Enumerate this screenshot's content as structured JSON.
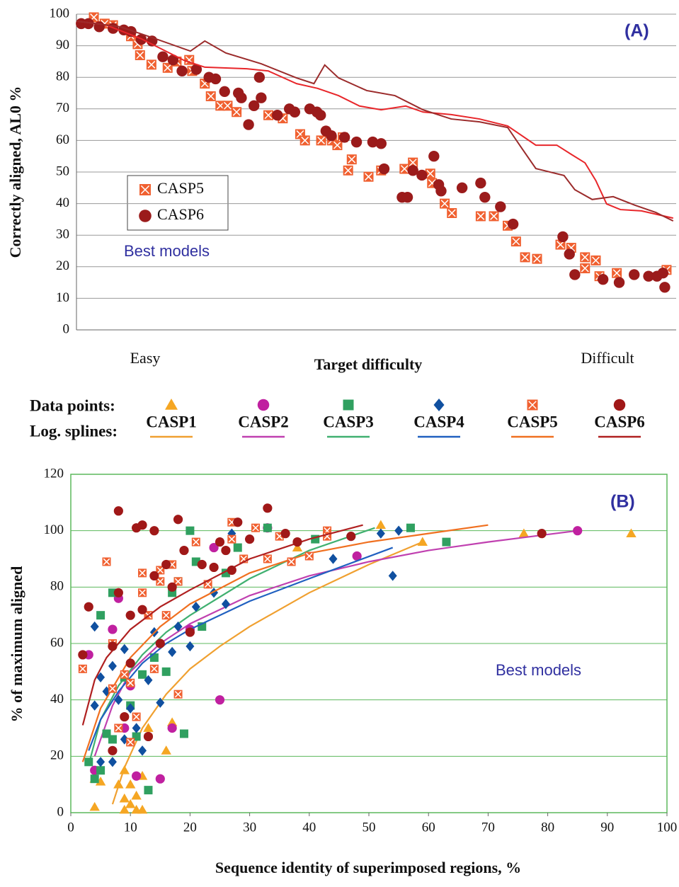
{
  "chart_data": [
    {
      "type": "scatter",
      "label": "(A)",
      "ylabel": "Correctly aligned, AL0 %",
      "xlabel": "Target difficulty",
      "x_end_labels": [
        "Easy",
        "Difficult"
      ],
      "annotation": "Best models",
      "xlim": [
        0,
        100
      ],
      "ylim": [
        0,
        100
      ],
      "yticks": [
        0,
        10,
        20,
        30,
        40,
        50,
        60,
        70,
        80,
        90,
        100
      ],
      "grid": true,
      "series": [
        {
          "name": "CASP5",
          "color": "#f06030",
          "marker": "square-x",
          "x": [
            2.9,
            4.7,
            6.1,
            9.1,
            10.2,
            10.6,
            12.5,
            15.2,
            16.7,
            18.8,
            19.3,
            21.4,
            22.4,
            24,
            25.2,
            26.7,
            32,
            34.4,
            37.3,
            38.1,
            40.8,
            42.6,
            43.5,
            44.4,
            45.3,
            45.9,
            48.7,
            50.8,
            54.7,
            56.1,
            59,
            59.3,
            61.4,
            62.6,
            67.4,
            69.6,
            71.9,
            73.3,
            74.8,
            76.8,
            80.7,
            82.5,
            84.8,
            86.6,
            84.8,
            87.2,
            90.1,
            98.4
          ],
          "values": [
            99,
            97,
            96.5,
            93,
            90.5,
            87,
            84,
            83,
            85,
            85.5,
            82,
            78,
            74,
            71,
            71,
            69,
            68,
            67,
            62,
            60,
            60,
            60,
            58.5,
            61,
            50.5,
            54,
            48.5,
            50.5,
            51,
            53,
            49.5,
            46.5,
            40,
            37,
            36,
            36,
            33,
            28,
            23,
            22.5,
            27,
            26,
            23,
            22,
            19.5,
            17,
            18,
            19
          ]
        },
        {
          "name": "CASP6",
          "color": "#9b1b1b",
          "marker": "circle",
          "x": [
            0.8,
            2,
            3.8,
            6.1,
            7.9,
            9.1,
            10.8,
            12.6,
            14.4,
            16.1,
            17.6,
            20,
            22.1,
            23.2,
            24.7,
            27,
            27.5,
            28.7,
            30.5,
            29.6,
            30.8,
            33.5,
            35.5,
            36.4,
            38.9,
            40.1,
            40.7,
            41.6,
            42.5,
            44.7,
            46.7,
            49.4,
            50.8,
            51.3,
            54.3,
            55.2,
            56.1,
            57.6,
            59.6,
            60.4,
            60.8,
            64.3,
            67.4,
            68.1,
            70.7,
            72.8,
            81.1,
            82.2,
            83.1,
            87.8,
            90.5,
            93,
            95.4,
            96.8,
            97.8,
            98.1
          ],
          "values": [
            97,
            97,
            96,
            95.5,
            95,
            94.5,
            92,
            91.5,
            86.5,
            85.5,
            82,
            82.5,
            80,
            79.5,
            75.5,
            75,
            73.5,
            65,
            80,
            71,
            73.5,
            68,
            70,
            69,
            70,
            69,
            68,
            63,
            61.5,
            61,
            59.5,
            59.5,
            59,
            51,
            42,
            42,
            50.5,
            49,
            55,
            46,
            44,
            45,
            46.5,
            42,
            39,
            33.5,
            29.5,
            24,
            17.5,
            16,
            15,
            17.5,
            17,
            17,
            18,
            13.5
          ]
        },
        {
          "color": "#e8262a",
          "marker": "line",
          "x": [
            0,
            4.9,
            10.8,
            17.9,
            21.4,
            28.4,
            32,
            36.7,
            40.2,
            43.7,
            47.2,
            50.8,
            54.9,
            57.8,
            62.5,
            67.2,
            71.9,
            76.6,
            80.1,
            82.5,
            84.8,
            86.6,
            88.4,
            90.7,
            94.2,
            99.5
          ],
          "values": [
            97.8,
            96.6,
            92.2,
            85.4,
            83.2,
            82.7,
            82,
            78,
            76.5,
            74.2,
            70.9,
            69.7,
            70.9,
            69,
            68.2,
            66.8,
            64.6,
            58.5,
            58.5,
            55.6,
            52.9,
            47.3,
            39.9,
            38.1,
            37.7,
            35.4
          ]
        },
        {
          "color": "#9b2b2b",
          "marker": "line",
          "x": [
            0,
            7.3,
            13.2,
            19,
            21.4,
            24.9,
            30.8,
            36.7,
            39.6,
            41.4,
            43.7,
            48.4,
            53.1,
            57.8,
            62.5,
            67.2,
            71.9,
            74.3,
            76.6,
            81.3,
            83.1,
            86,
            89.5,
            93.1,
            96.6,
            99.5
          ],
          "values": [
            97.8,
            96,
            92.2,
            88.3,
            91.5,
            87.7,
            84.3,
            79.8,
            78,
            83.9,
            79.8,
            75.8,
            74.2,
            69.7,
            66.8,
            65.9,
            64.1,
            57.4,
            51.1,
            48.9,
            44.4,
            41.3,
            42.2,
            39.5,
            37.2,
            34.5
          ]
        }
      ]
    },
    {
      "type": "scatter",
      "label": "(B)",
      "ylabel": "% of maximum aligned",
      "xlabel": "Sequence identity of superimposed regions, %",
      "annotation": "Best models",
      "legend_rows": [
        "Data points:",
        "Log. splines:"
      ],
      "xlim": [
        0,
        100
      ],
      "ylim": [
        0,
        120
      ],
      "xticks": [
        0,
        10,
        20,
        30,
        40,
        50,
        60,
        70,
        80,
        90,
        100
      ],
      "yticks": [
        0,
        20,
        40,
        60,
        80,
        100,
        120
      ],
      "grid": true,
      "series": [
        {
          "name": "CASP1",
          "color": "#f5a623",
          "marker": "triangle",
          "x": [
            4,
            5,
            8,
            9,
            9,
            10,
            10,
            11,
            11,
            12,
            12,
            13,
            16,
            17,
            52,
            59,
            76,
            94,
            38,
            4,
            9
          ],
          "values": [
            2,
            11,
            10,
            5,
            1,
            3,
            10,
            6,
            1,
            1,
            13,
            30,
            22,
            32,
            102,
            96,
            99,
            99,
            94,
            12,
            15
          ],
          "spline": {
            "color": "#f0a030",
            "x": [
              7,
              9,
              12,
              16,
              20,
              25,
              30,
              40,
              50,
              59
            ],
            "values": [
              3,
              16,
              30,
              42,
              51,
              59,
              66,
              78,
              88,
              96
            ]
          }
        },
        {
          "name": "CASP2",
          "color": "#c020a0",
          "marker": "circle",
          "x": [
            3,
            4,
            7,
            9,
            11,
            15,
            17,
            20,
            25,
            24,
            33,
            48,
            85,
            10,
            8
          ],
          "values": [
            56,
            15,
            65,
            30,
            13,
            12,
            30,
            65,
            40,
            94,
            101,
            91,
            100,
            45,
            76
          ],
          "spline": {
            "color": "#c040b0",
            "x": [
              4,
              7,
              10,
              15,
              20,
              30,
              40,
              50,
              60,
              70,
              85
            ],
            "values": [
              20,
              38,
              50,
              60,
              67,
              77,
              84,
              89,
              93,
              96,
              100
            ]
          }
        },
        {
          "name": "CASP3",
          "color": "#30a060",
          "marker": "square",
          "x": [
            3,
            4,
            5,
            5,
            6,
            7,
            7,
            9,
            10,
            11,
            13,
            14,
            16,
            17,
            19,
            20,
            21,
            22,
            26,
            28,
            33,
            41,
            57,
            63,
            18,
            12
          ],
          "values": [
            18,
            12,
            70,
            15,
            28,
            26,
            78,
            48,
            38,
            27,
            8,
            55,
            50,
            78,
            28,
            100,
            89,
            66,
            85,
            94,
            101,
            97,
            101,
            96,
            82,
            49
          ],
          "spline": {
            "color": "#40b070",
            "x": [
              3,
              5,
              8,
              12,
              16,
              20,
              30,
              40,
              51
            ],
            "values": [
              17,
              33,
              45,
              56,
              64,
              70,
              83,
              93,
              101
            ]
          }
        },
        {
          "name": "CASP4",
          "color": "#1050a0",
          "marker": "diamond",
          "x": [
            4,
            5,
            4,
            5,
            6,
            7,
            7,
            8,
            9,
            10,
            11,
            12,
            13,
            14,
            15,
            17,
            18,
            20,
            21,
            24,
            26,
            27,
            44,
            52,
            54,
            55,
            9
          ],
          "values": [
            66,
            48,
            38,
            18,
            43,
            18,
            52,
            40,
            26,
            37,
            30,
            22,
            47,
            64,
            39,
            57,
            66,
            59,
            73,
            78,
            74,
            99,
            90,
            99,
            84,
            100,
            58
          ],
          "spline": {
            "color": "#2060c0",
            "x": [
              3,
              5,
              8,
              12,
              16,
              20,
              30,
              40,
              54
            ],
            "values": [
              22,
              33,
              43,
              53,
              60,
              65,
              75,
              83,
              94
            ]
          }
        },
        {
          "name": "CASP5",
          "color": "#f06030",
          "marker": "square-x",
          "x": [
            2,
            6,
            7,
            7,
            8,
            9,
            10,
            10,
            11,
            12,
            12,
            13,
            14,
            15,
            15,
            16,
            17,
            18,
            18,
            21,
            23,
            27,
            29,
            31,
            33,
            35,
            37,
            40,
            43,
            43,
            27
          ],
          "values": [
            51,
            89,
            44,
            60,
            30,
            49,
            25,
            46,
            34,
            78,
            85,
            70,
            51,
            82,
            86,
            70,
            88,
            42,
            82,
            96,
            81,
            103,
            90,
            101,
            90,
            98,
            89,
            91,
            100,
            98,
            97
          ],
          "spline": {
            "color": "#f07020",
            "x": [
              2,
              5,
              10,
              15,
              20,
              30,
              40,
              50,
              60,
              70
            ],
            "values": [
              18,
              37,
              55,
              66,
              74,
              85,
              92,
              96,
              99,
              102
            ]
          }
        },
        {
          "name": "CASP6",
          "color": "#a01818",
          "marker": "circle",
          "x": [
            2,
            3,
            7,
            7,
            8,
            8,
            9,
            10,
            10,
            11,
            12,
            12,
            13,
            14,
            14,
            15,
            16,
            17,
            18,
            19,
            20,
            22,
            24,
            25,
            26,
            27,
            28,
            30,
            33,
            36,
            47,
            79,
            38
          ],
          "values": [
            56,
            73,
            22,
            59,
            107,
            78,
            34,
            53,
            70,
            101,
            102,
            72,
            27,
            100,
            84,
            60,
            88,
            80,
            104,
            93,
            64,
            88,
            87,
            96,
            93,
            86,
            103,
            97,
            108,
            99,
            98,
            99,
            96
          ],
          "spline": {
            "color": "#b02020",
            "x": [
              2,
              4,
              6,
              10,
              15,
              20,
              30,
              40,
              49
            ],
            "values": [
              31,
              47,
              55,
              65,
              73,
              79,
              90,
              97,
              102
            ]
          }
        }
      ]
    }
  ]
}
